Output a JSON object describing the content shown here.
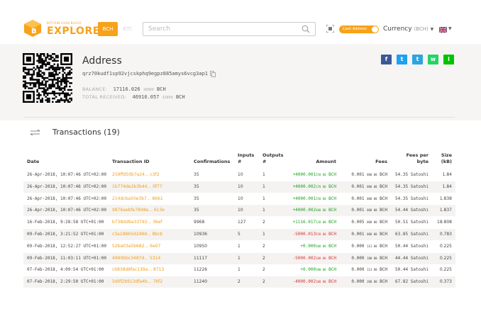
{
  "header": {
    "logo_small": "BITCOIN CASH BLOCK",
    "logo_big": "EXPLORER",
    "coin_bch": "BCH",
    "coin_btc": "BTC",
    "search_placeholder": "Search",
    "cash_address_label": "Cash Address",
    "currency_label": "Currency",
    "currency_value": "(BCH)"
  },
  "address": {
    "title": "Address",
    "value": "qrz70kudf1sp92vjcskphq9egpz885amys6vcg3ap1",
    "balance_label": "BALANCE:",
    "balance_value": "17116.026",
    "balance_small": "18080",
    "balance_unit": "BCH",
    "received_label": "TOTAL RECEIVED:",
    "received_value": "46916.057",
    "received_small": "32800",
    "received_unit": "BCH"
  },
  "social": [
    "f",
    "t",
    "t",
    "w",
    "l"
  ],
  "transactions": {
    "title": "Transactions (19)",
    "columns": [
      "Date",
      "Transaction ID",
      "Confirmations",
      "Inputs #",
      "Outputs #",
      "Amount",
      "Fees",
      "Fees per byte",
      "Size (kB)"
    ],
    "rows": [
      {
        "date": "26-Apr-2018, 10:07:46 UTC+02:00",
        "txid": "259ffd50b7a24... c3f2",
        "conf": "35",
        "inputs": "10",
        "outputs": "1",
        "amount": "+4000.001",
        "amount_small": "550 00",
        "amount_unit": "BCH",
        "amount_sign": "pos",
        "fees": "0.001",
        "fees_small": "000 00",
        "fees_unit": "BCH",
        "fpb": "54.35 Satoshi",
        "size": "1.84"
      },
      {
        "date": "26-Apr-2018, 10:07:46 UTC+02:00",
        "txid": "1b774de2b3b44... 0f77",
        "conf": "35",
        "inputs": "10",
        "outputs": "1",
        "amount": "+4000.002",
        "amount_small": "170 00",
        "amount_unit": "BCH",
        "amount_sign": "pos",
        "fees": "0.001",
        "fees_small": "000 00",
        "fees_unit": "BCH",
        "fpb": "54.35 Satoshi",
        "size": "1.84"
      },
      {
        "date": "26-Apr-2018, 10:07:46 UTC+02:00",
        "txid": "214dcba50e3b7... 8661",
        "conf": "35",
        "inputs": "10",
        "outputs": "1",
        "amount": "+4000.001",
        "amount_small": "550 00",
        "amount_unit": "BCH",
        "amount_sign": "pos",
        "fees": "0.001",
        "fees_small": "000 00",
        "fees_unit": "BCH",
        "fpb": "54.35 Satoshi",
        "size": "1.838"
      },
      {
        "date": "26-Apr-2018, 10:07:46 UTC+02:00",
        "txid": "9876aebfe7848e... 613e",
        "conf": "35",
        "inputs": "10",
        "outputs": "1",
        "amount": "+4000.002",
        "amount_small": "400 00",
        "amount_unit": "BCH",
        "amount_sign": "pos",
        "fees": "0.001",
        "fees_small": "000 00",
        "fees_unit": "BCH",
        "fpb": "54.44 Satoshi",
        "size": "1.837"
      },
      {
        "date": "16-Feb-2018, 9:28:58 UTC+01:00",
        "txid": "b738dd9a33793... 36ef",
        "conf": "9968",
        "inputs": "127",
        "outputs": "2",
        "amount": "+1116.017",
        "amount_small": "120 00",
        "amount_unit": "BCH",
        "amount_sign": "pos",
        "fees": "0.005",
        "fees_small": "000 00",
        "fees_unit": "BCH",
        "fpb": "50.51 Satoshi",
        "size": "18.808"
      },
      {
        "date": "09-Feb-2018, 3:21:52 UTC+01:00",
        "txid": "c3a18865d2d9d... 8bcb",
        "conf": "10936",
        "inputs": "5",
        "outputs": "1",
        "amount": "-5000.013",
        "amount_small": "550 00",
        "amount_unit": "BCH",
        "amount_sign": "neg",
        "fees": "0.001",
        "fees_small": "000 00",
        "fees_unit": "BCH",
        "fpb": "63.85 Satoshi",
        "size": "0.783"
      },
      {
        "date": "09-Feb-2018, 12:52:27 UTC+01:00",
        "txid": "52ba03a5b682... 6e07",
        "conf": "10950",
        "inputs": "1",
        "outputs": "2",
        "amount": "+0.000",
        "amount_small": "100 00",
        "amount_unit": "BCH",
        "amount_sign": "pos",
        "fees": "0.000",
        "fees_small": "113 00",
        "fees_unit": "BCH",
        "fpb": "50.44 Satoshi",
        "size": "0.225"
      },
      {
        "date": "09-Feb-2018, 11:03:11 UTC+01:00",
        "txid": "4990bbc3487d... 5314",
        "conf": "11117",
        "inputs": "1",
        "outputs": "2",
        "amount": "-5000.002",
        "amount_small": "100 00",
        "amount_unit": "BCH",
        "amount_sign": "neg",
        "fees": "0.000",
        "fees_small": "100 00",
        "fees_unit": "BCH",
        "fpb": "44.44 Satoshi",
        "size": "0.225"
      },
      {
        "date": "07-Feb-2018, 4:09:54 UTC+01:00",
        "txid": "c6838d8fac139a... 8713",
        "conf": "11226",
        "inputs": "1",
        "outputs": "2",
        "amount": "+0.000",
        "amount_small": "100 00",
        "amount_unit": "BCH",
        "amount_sign": "pos",
        "fees": "0.000",
        "fees_small": "113 00",
        "fees_unit": "BCH",
        "fpb": "50.44 Satoshi",
        "size": "0.225"
      },
      {
        "date": "07-Feb-2018, 2:29:50 UTC+01:00",
        "txid": "5d0f2b913dfa4b... 76f2",
        "conf": "11240",
        "inputs": "2",
        "outputs": "2",
        "amount": "-4000.002",
        "amount_small": "100 00",
        "amount_unit": "BCH",
        "amount_sign": "neg",
        "fees": "0.000",
        "fees_small": "200 00",
        "fees_unit": "BCH",
        "fpb": "67.82 Satoshi",
        "size": "0.373"
      }
    ]
  },
  "colors": {
    "accent": "#f7a21b",
    "txid": "#f09c1a",
    "positive": "#20a020",
    "negative": "#e03030",
    "facebook": "#3b5998",
    "twitter": "#1da1f2",
    "telegram": "#2ca5e0",
    "whatsapp": "#25d366",
    "line": "#00c300"
  }
}
